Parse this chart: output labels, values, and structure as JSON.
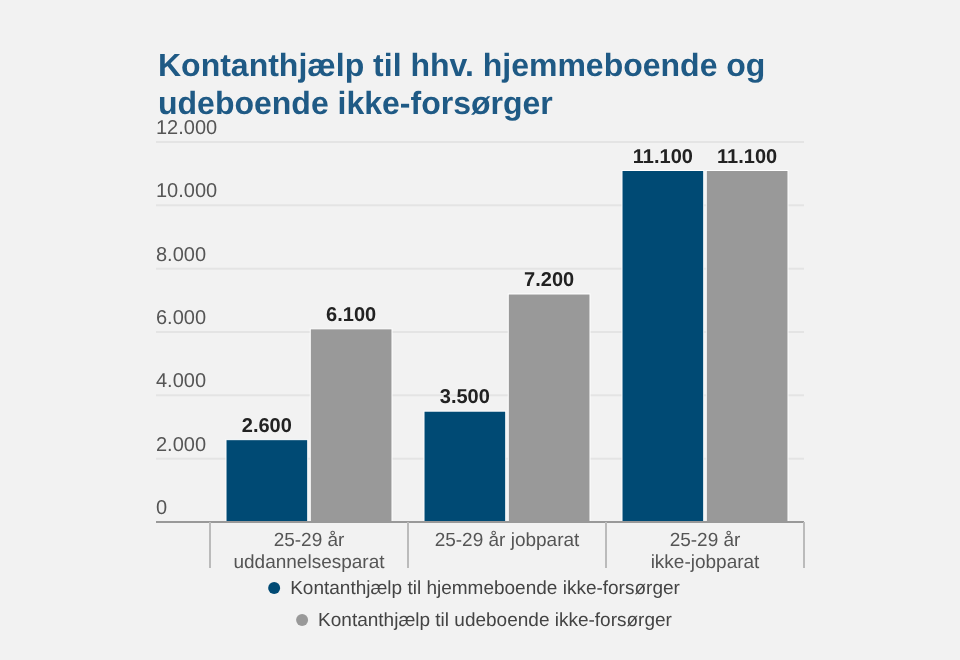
{
  "chart_data": {
    "type": "bar",
    "title": "Kontanthjælp til hhv. hjemmeboende og udeboende ikke-forsørger",
    "categories": [
      "25-29 år uddannelsesparat",
      "25-29 år jobparat",
      "25-29 år ikke-jobparat"
    ],
    "series": [
      {
        "name": "Kontanthjælp til hjemmeboende ikke-forsørger",
        "color": "#004a74",
        "values": [
          2600,
          3500,
          11100
        ],
        "value_labels": [
          "2.600",
          "3.500",
          "11.100"
        ]
      },
      {
        "name": "Kontanthjælp til udeboende ikke-forsørger",
        "color": "#999999",
        "values": [
          6100,
          7200,
          11100
        ],
        "value_labels": [
          "6.100",
          "7.200",
          "11.100"
        ]
      }
    ],
    "ylim": [
      0,
      12000
    ],
    "yticks": [
      {
        "value": 0,
        "label": "0"
      },
      {
        "value": 2000,
        "label": "2.000"
      },
      {
        "value": 4000,
        "label": "4.000"
      },
      {
        "value": 6000,
        "label": "6.000"
      },
      {
        "value": 8000,
        "label": "8.000"
      },
      {
        "value": 10000,
        "label": "10.000"
      },
      {
        "value": 12000,
        "label": "12.000"
      }
    ],
    "grid": "y",
    "legend": "bottom"
  }
}
